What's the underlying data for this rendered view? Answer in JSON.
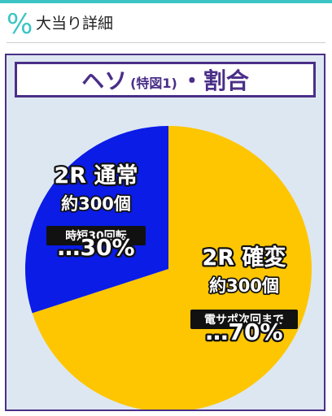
{
  "header": {
    "icon": "percent-icon",
    "icon_glyph": "%",
    "title": "大当り詳細"
  },
  "card": {
    "title_main": "ヘソ",
    "title_sub": "(特図1)",
    "title_sep": "・",
    "title_end": "割合"
  },
  "colors": {
    "accent": "#3cc4c4",
    "frame": "#4a2f88",
    "blue_slice": "#0a1ce6",
    "yellow_slice": "#fdc601",
    "card_bg": "#dde7f2"
  },
  "chart_data": {
    "type": "pie",
    "slices": [
      {
        "label": "2R 確変",
        "value": 70,
        "count_label": "約300個",
        "note": "電サポ次回まで",
        "percent_label": "…70%",
        "color": "#fdc601"
      },
      {
        "label": "2R 通常",
        "value": 30,
        "count_label": "約300個",
        "note": "時短30回転",
        "percent_label": "…30%",
        "color": "#0a1ce6"
      }
    ],
    "start_angle": "12 o'clock",
    "direction": "clockwise"
  }
}
